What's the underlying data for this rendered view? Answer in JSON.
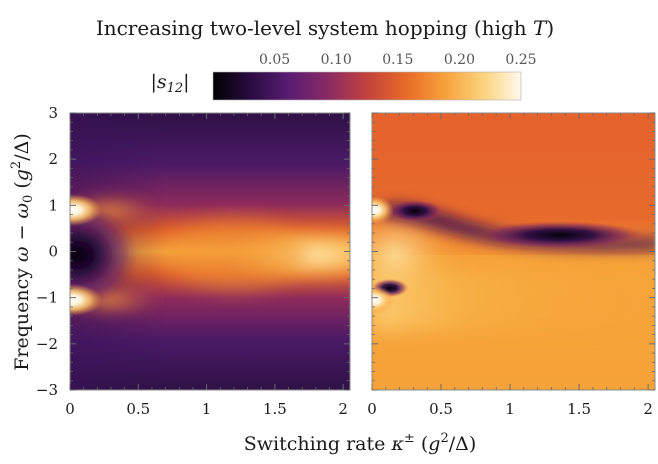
{
  "chart_data": {
    "type": "heatmap",
    "title": "Increasing two-level system hopping (high T)",
    "xlabel": "Switching rate κ± (g²/Δ)",
    "ylabel": "Frequency ω − ω0 (g²/Δ)",
    "colorbar": {
      "label": "|s12|",
      "range": [
        0,
        0.25
      ],
      "ticks": [
        "0.05",
        "0.10",
        "0.15",
        "0.20",
        "0.25"
      ],
      "tick_values": [
        0.05,
        0.1,
        0.15,
        0.2,
        0.25
      ],
      "colormap": [
        "#000000",
        "#2b0c44",
        "#5a1d73",
        "#8b2a63",
        "#c2423e",
        "#e86a28",
        "#f6a03a",
        "#fcd27a",
        "#fff8ec"
      ]
    },
    "panels": [
      {
        "name": "left",
        "xlim": [
          0,
          2.05
        ],
        "ylim": [
          -3,
          3
        ],
        "xticks": [
          "0",
          "0.5",
          "1",
          "1.5",
          "2"
        ],
        "xtick_values": [
          0,
          0.5,
          1,
          1.5,
          2
        ],
        "yticks": [
          "−3",
          "−2",
          "−1",
          "0",
          "1",
          "2",
          "3"
        ],
        "ytick_values": [
          -3,
          -2,
          -1,
          0,
          1,
          2,
          3
        ],
        "features": [
          {
            "x": 0,
            "y": 1,
            "s12": 0.25
          },
          {
            "x": 0,
            "y": -1,
            "s12": 0.25
          },
          {
            "x": 0,
            "y": 0,
            "s12": 0.0
          },
          {
            "x": 2,
            "y": 0,
            "s12": 0.24
          },
          {
            "x": 2,
            "y": 3,
            "s12": 0.03
          }
        ]
      },
      {
        "name": "right",
        "xlim": [
          0,
          2.05
        ],
        "ylim": [
          -3,
          3
        ],
        "xticks": [
          "0",
          "0.5",
          "1",
          "1.5",
          "2"
        ],
        "xtick_values": [
          0,
          0.5,
          1,
          1.5,
          2
        ],
        "features": [
          {
            "x": 0,
            "y": 1,
            "s12": 0.25
          },
          {
            "x": 0,
            "y": -1,
            "s12": 0.25
          },
          {
            "x": 0.2,
            "y": 1.1,
            "s12": 0.0
          },
          {
            "x": 0.12,
            "y": -0.8,
            "s12": 0.0
          },
          {
            "x": 1.3,
            "y": 0.45,
            "s12": 0.0
          },
          {
            "x": 1.0,
            "y": 2.0,
            "s12": 0.15
          },
          {
            "x": 1.5,
            "y": -1.5,
            "s12": 0.19
          }
        ]
      }
    ]
  }
}
